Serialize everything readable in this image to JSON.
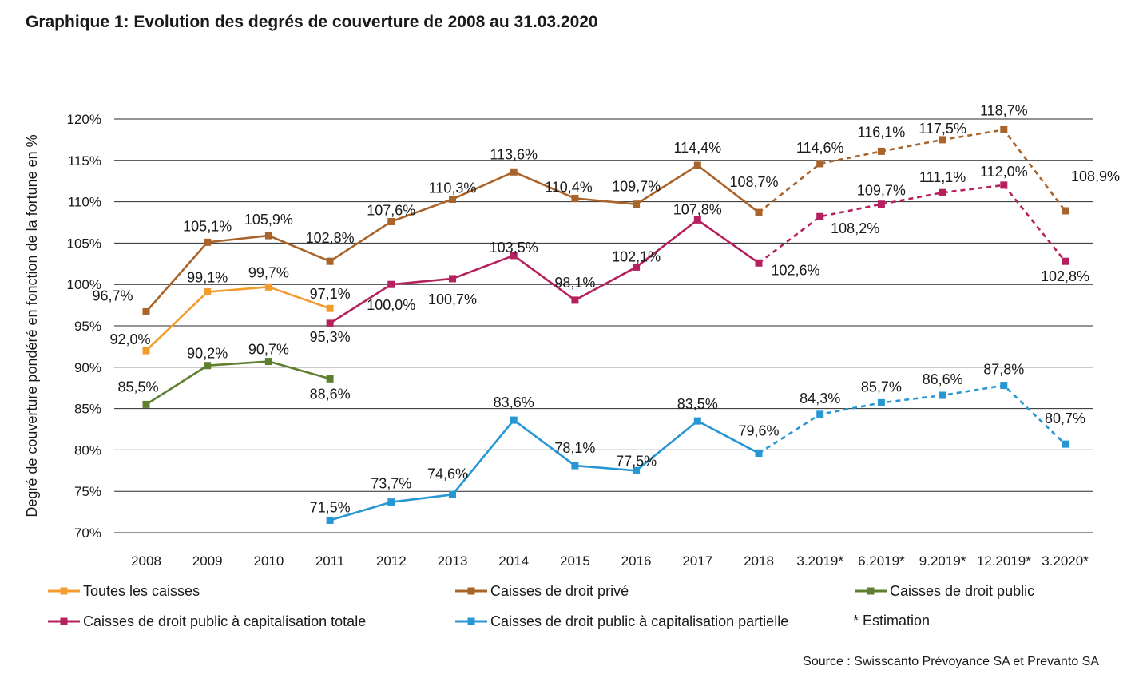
{
  "chart_data": {
    "type": "line",
    "title": "Graphique 1: Evolution des degrés de couverture de 2008 au 31.03.2020",
    "ylabel": "Degré de couverture pondéré en fonction de la fortune en %",
    "xlabel": "",
    "ylim": [
      70,
      120
    ],
    "y_ticks": [
      70,
      75,
      80,
      85,
      90,
      95,
      100,
      105,
      110,
      115,
      120
    ],
    "y_unit": "%",
    "grid": "horizontal",
    "categories": [
      "2008",
      "2009",
      "2010",
      "2011",
      "2012",
      "2013",
      "2014",
      "2015",
      "2016",
      "2017",
      "2018",
      "3.2019*",
      "6.2019*",
      "9.2019*",
      "12.2019*",
      "3.2020*"
    ],
    "estimate_start_index": 10,
    "series": [
      {
        "name": "Toutes les caisses",
        "color": "#f39c2e",
        "values": [
          92.0,
          99.1,
          99.7,
          97.1,
          null,
          null,
          null,
          null,
          null,
          null,
          null,
          null,
          null,
          null,
          null,
          null
        ],
        "labels": [
          "92,0%",
          "99,1%",
          "99,7%",
          "97,1%",
          null,
          null,
          null,
          null,
          null,
          null,
          null,
          null,
          null,
          null,
          null,
          null
        ]
      },
      {
        "name": "Caisses de droit privé",
        "color": "#a8642a",
        "values": [
          96.7,
          105.1,
          105.9,
          102.8,
          107.6,
          110.3,
          113.6,
          110.4,
          109.7,
          114.4,
          108.7,
          114.6,
          116.1,
          117.5,
          118.7,
          108.9
        ],
        "labels": [
          "96,7%",
          "105,1%",
          "105,9%",
          "102,8%",
          "107,6%",
          "110,3%",
          "113,6%",
          "110,4%",
          "109,7%",
          "114,4%",
          "108,7%",
          "114,6%",
          "116,1%",
          "117,5%",
          "118,7%",
          "108,9%"
        ]
      },
      {
        "name": "Caisses de droit public",
        "color": "#5d7f2e",
        "values": [
          85.5,
          90.2,
          90.7,
          88.6,
          null,
          null,
          null,
          null,
          null,
          null,
          null,
          null,
          null,
          null,
          null,
          null
        ],
        "labels": [
          "85,5%",
          "90,2%",
          "90,7%",
          "88,6%",
          null,
          null,
          null,
          null,
          null,
          null,
          null,
          null,
          null,
          null,
          null,
          null
        ]
      },
      {
        "name": "Caisses de droit public à capitalisation totale",
        "color": "#b5215e",
        "values": [
          null,
          null,
          null,
          95.3,
          100.0,
          100.7,
          103.5,
          98.1,
          102.1,
          107.8,
          102.6,
          108.2,
          109.7,
          111.1,
          112.0,
          102.8
        ],
        "labels": [
          null,
          null,
          null,
          "95,3%",
          "100,0%",
          "100,7%",
          "103,5%",
          "98,1%",
          "102,1%",
          "107,8%",
          "102,6%",
          "108,2%",
          "109,7%",
          "111,1%",
          "112,0%",
          "102,8%"
        ]
      },
      {
        "name": "Caisses de droit public à capitalisation partielle",
        "color": "#2797d3",
        "values": [
          null,
          null,
          null,
          71.5,
          73.7,
          74.6,
          83.6,
          78.1,
          77.5,
          83.5,
          79.6,
          84.3,
          85.7,
          86.6,
          87.8,
          80.7
        ],
        "labels": [
          null,
          null,
          null,
          "71,5%",
          "73,7%",
          "74,6%",
          "83,6%",
          "78,1%",
          "77,5%",
          "83,5%",
          "79,6%",
          "84,3%",
          "85,7%",
          "86,6%",
          "87,8%",
          "80,7%"
        ]
      }
    ],
    "legend_note": "* Estimation",
    "legend_position": "bottom",
    "source": "Source : Swisscanto Prévoyance SA et Prevanto SA"
  }
}
